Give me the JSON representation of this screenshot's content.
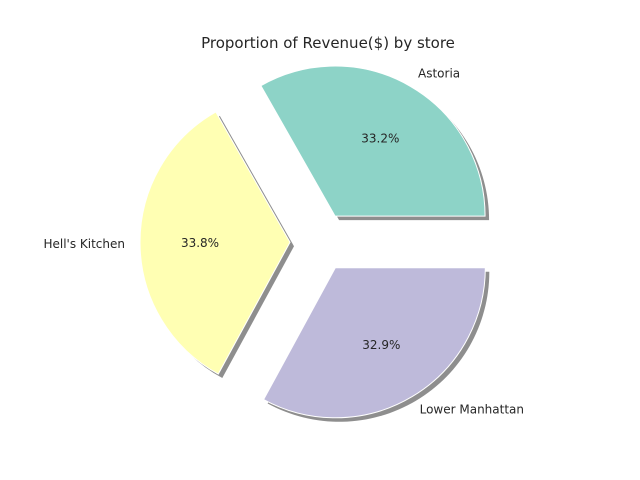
{
  "chart_data": {
    "type": "pie",
    "title": "Proportion of Revenue($) by store",
    "labels": [
      "Astoria",
      "Hell's Kitchen",
      "Lower Manhattan"
    ],
    "values": [
      33.2,
      33.8,
      32.9
    ],
    "value_labels": [
      "33.2%",
      "33.8%",
      "32.9%"
    ],
    "colors": [
      "#8dd3c7",
      "#ffffb3",
      "#bebada"
    ],
    "exploded": true,
    "shadow": true,
    "legend": "none"
  }
}
